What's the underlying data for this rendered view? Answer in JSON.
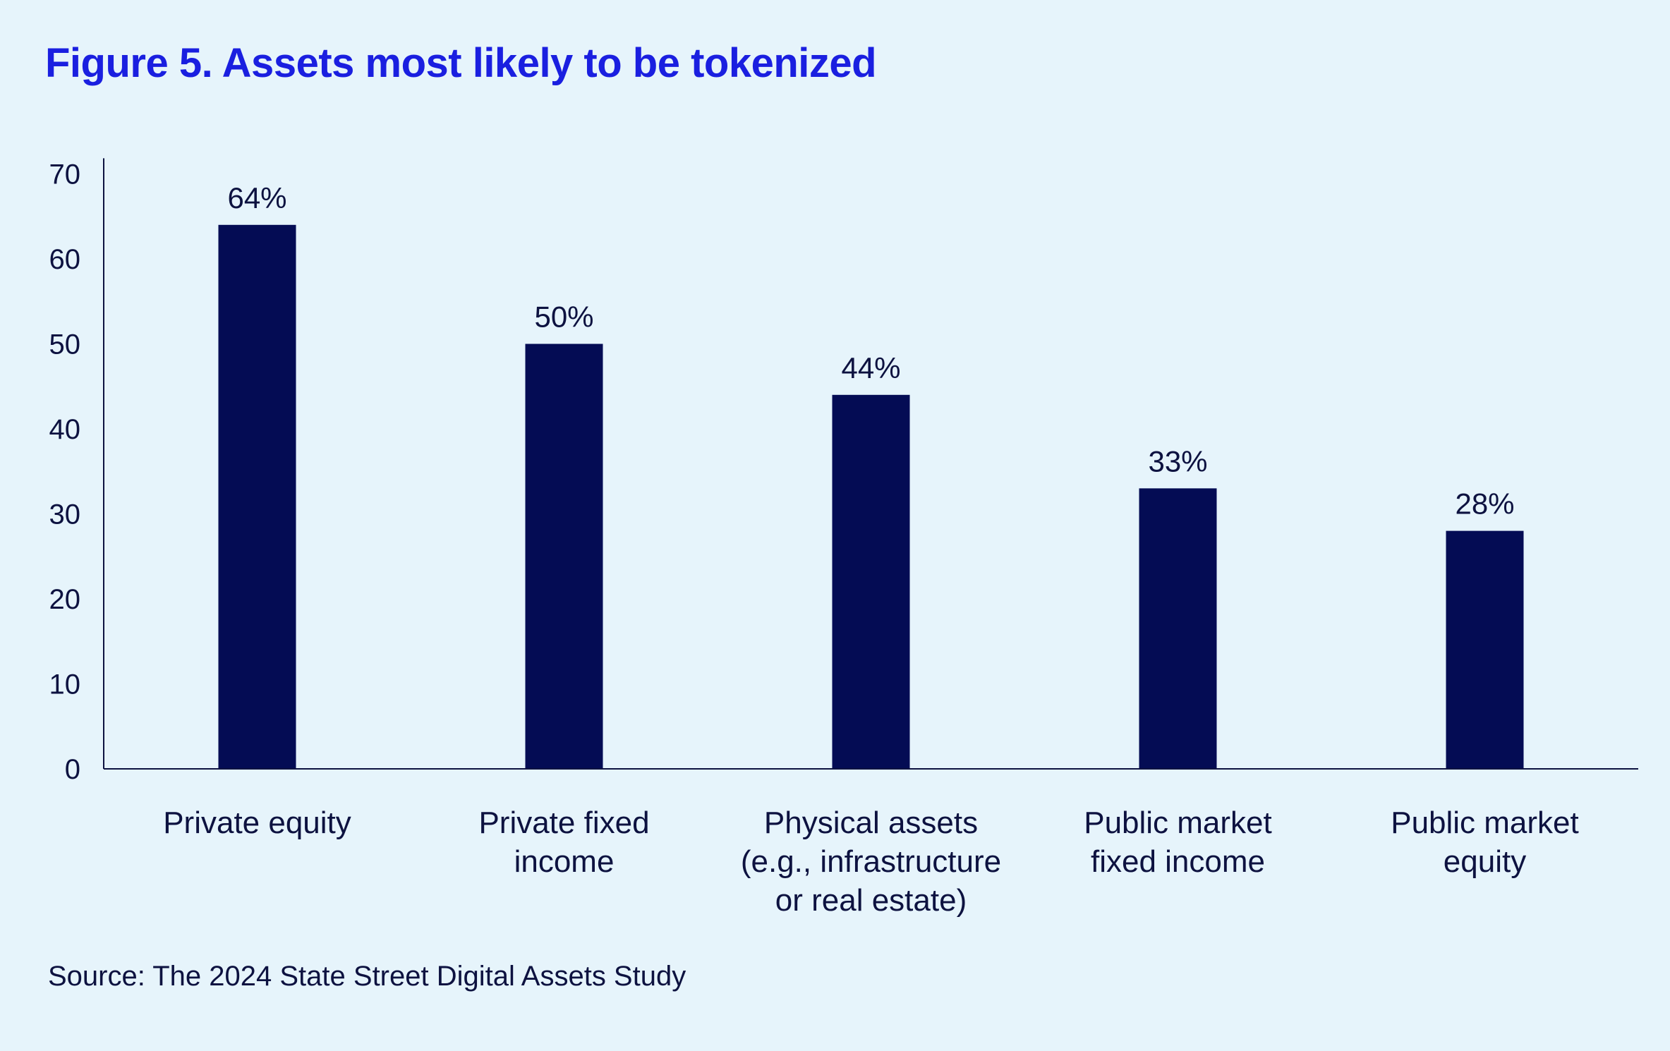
{
  "title": "Figure 5. Assets most likely to be tokenized",
  "source": "Source: The 2024 State Street Digital Assets Study",
  "colors": {
    "background": "#e6f4fb",
    "title": "#1a1fe0",
    "bar": "#040c54",
    "text": "#0d1240",
    "axis": "#0d1240"
  },
  "chart_data": {
    "type": "bar",
    "title": "Figure 5. Assets most likely to be tokenized",
    "xlabel": "",
    "ylabel": "",
    "categories": [
      [
        "Private equity"
      ],
      [
        "Private fixed",
        "income"
      ],
      [
        "Physical assets",
        "(e.g., infrastructure",
        "or real estate)"
      ],
      [
        "Public market",
        "fixed income"
      ],
      [
        "Public market",
        "equity"
      ]
    ],
    "values": [
      64,
      50,
      44,
      33,
      28
    ],
    "data_labels": [
      "64%",
      "50%",
      "44%",
      "33%",
      "28%"
    ],
    "yticks": [
      0,
      10,
      20,
      30,
      40,
      50,
      60,
      70
    ],
    "ylim": [
      0,
      72
    ],
    "grid": false,
    "legend": "none"
  }
}
